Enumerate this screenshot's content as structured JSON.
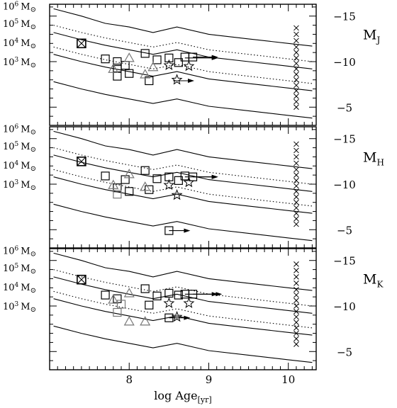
{
  "chart_data": {
    "type": "scatter",
    "xlabel": "log Age",
    "xlabel_sub": "[yr]",
    "xlim": [
      7.0,
      10.35
    ],
    "ylim": [
      -3.0,
      -16.3
    ],
    "x_ticks": [
      {
        "value": 8,
        "label": "8"
      },
      {
        "value": 9,
        "label": "9"
      },
      {
        "value": 10,
        "label": "10"
      }
    ],
    "right_ticks": [
      {
        "value": -15,
        "label": "−15"
      },
      {
        "value": -10,
        "label": "−10"
      },
      {
        "value": -5,
        "label": "−5"
      }
    ],
    "mass_labels": [
      {
        "mag": -16.1,
        "base": "10",
        "exp": "6",
        "unit": "M",
        "sym": "⊙"
      },
      {
        "mag": -14.2,
        "base": "10",
        "exp": "5",
        "unit": "M",
        "sym": "⊙"
      },
      {
        "mag": -12.1,
        "base": "10",
        "exp": "4",
        "unit": "M",
        "sym": "⊙"
      },
      {
        "mag": -10.0,
        "base": "10",
        "exp": "3",
        "unit": "M",
        "sym": "⊙"
      }
    ],
    "model_x": [
      7.05,
      7.4,
      7.7,
      8.0,
      8.3,
      8.6,
      9.0,
      9.5,
      10.0,
      10.3
    ],
    "panels": [
      {
        "label": "M",
        "label_sub": "J",
        "solid_tracks": [
          [
            -15.8,
            -15.0,
            -14.2,
            -13.8,
            -13.2,
            -13.8,
            -13.0,
            -12.5,
            -12.0,
            -11.7
          ],
          [
            -13.2,
            -12.4,
            -11.8,
            -11.3,
            -10.8,
            -11.3,
            -10.5,
            -10.0,
            -9.5,
            -9.2
          ],
          [
            -10.8,
            -10.0,
            -9.4,
            -8.9,
            -8.4,
            -8.9,
            -8.1,
            -7.6,
            -7.1,
            -6.8
          ],
          [
            -7.8,
            -7.0,
            -6.4,
            -5.9,
            -5.4,
            -5.9,
            -5.1,
            -4.6,
            -4.1,
            -3.8
          ]
        ],
        "dotted_tracks": [
          [
            -14.0,
            -13.2,
            -12.6,
            -12.1,
            -11.6,
            -12.1,
            -11.3,
            -10.8,
            -10.3,
            -10.0
          ],
          [
            -11.6,
            -10.8,
            -10.2,
            -9.7,
            -9.2,
            -9.7,
            -8.9,
            -8.4,
            -7.9,
            -7.6
          ]
        ],
        "crossed_squares": [
          {
            "x": 7.4,
            "y": -12.0
          }
        ],
        "squares": [
          {
            "x": 7.7,
            "y": -10.3
          },
          {
            "x": 7.85,
            "y": -9.3
          },
          {
            "x": 7.85,
            "y": -10.0
          },
          {
            "x": 7.85,
            "y": -8.4
          },
          {
            "x": 7.95,
            "y": -9.6
          },
          {
            "x": 8.0,
            "y": -8.7
          },
          {
            "x": 8.2,
            "y": -10.9
          },
          {
            "x": 8.25,
            "y": -7.9
          },
          {
            "x": 8.35,
            "y": -10.2
          },
          {
            "x": 8.5,
            "y": -10.4
          },
          {
            "x": 8.62,
            "y": -9.9
          },
          {
            "x": 8.7,
            "y": -10.5
          },
          {
            "x": 8.8,
            "y": -10.5
          }
        ],
        "gray_squares": [],
        "triangles": [
          {
            "x": 7.8,
            "y": -9.2
          },
          {
            "x": 8.0,
            "y": -10.4
          },
          {
            "x": 8.2,
            "y": -8.6
          },
          {
            "x": 8.3,
            "y": -9.4
          }
        ],
        "stars": [
          {
            "x": 8.5,
            "y": -9.6
          },
          {
            "x": 8.6,
            "y": -8.0
          },
          {
            "x": 8.75,
            "y": -9.5
          }
        ],
        "arrows": [
          {
            "x": 8.7,
            "y": -10.4,
            "len": 0.4
          },
          {
            "x": 8.8,
            "y": -10.5,
            "len": 0.3
          },
          {
            "x": 8.55,
            "y": -7.9,
            "len": 0.25
          }
        ],
        "x_markers": [
          {
            "x": 10.1,
            "y": -13.7
          },
          {
            "x": 10.1,
            "y": -13.0
          },
          {
            "x": 10.1,
            "y": -12.3
          },
          {
            "x": 10.1,
            "y": -11.6
          },
          {
            "x": 10.1,
            "y": -11.0
          },
          {
            "x": 10.1,
            "y": -10.4
          },
          {
            "x": 10.1,
            "y": -9.8
          },
          {
            "x": 10.1,
            "y": -9.2
          },
          {
            "x": 10.1,
            "y": -8.6
          },
          {
            "x": 10.1,
            "y": -8.0
          },
          {
            "x": 10.1,
            "y": -7.4
          },
          {
            "x": 10.1,
            "y": -6.8
          },
          {
            "x": 10.1,
            "y": -6.2
          },
          {
            "x": 10.1,
            "y": -5.6
          },
          {
            "x": 10.1,
            "y": -5.0
          }
        ]
      },
      {
        "label": "M",
        "label_sub": "H",
        "solid_tracks": [
          [
            -15.8,
            -15.0,
            -14.2,
            -13.8,
            -13.2,
            -13.8,
            -13.0,
            -12.5,
            -12.0,
            -11.7
          ],
          [
            -13.2,
            -12.4,
            -11.8,
            -11.3,
            -10.8,
            -11.3,
            -10.5,
            -10.0,
            -9.5,
            -9.2
          ],
          [
            -10.8,
            -10.0,
            -9.4,
            -8.9,
            -8.4,
            -8.9,
            -8.1,
            -7.6,
            -7.1,
            -6.8
          ],
          [
            -7.8,
            -7.0,
            -6.4,
            -5.9,
            -5.4,
            -5.9,
            -5.1,
            -4.6,
            -4.1,
            -3.8
          ]
        ],
        "dotted_tracks": [
          [
            -14.0,
            -13.2,
            -12.6,
            -12.1,
            -11.6,
            -12.1,
            -11.3,
            -10.8,
            -10.3,
            -10.0
          ],
          [
            -11.6,
            -10.8,
            -10.2,
            -9.7,
            -9.2,
            -9.7,
            -8.9,
            -8.4,
            -7.9,
            -7.6
          ]
        ],
        "crossed_squares": [
          {
            "x": 7.4,
            "y": -12.5
          }
        ],
        "squares": [
          {
            "x": 7.7,
            "y": -10.9
          },
          {
            "x": 7.85,
            "y": -9.6
          },
          {
            "x": 7.95,
            "y": -10.5
          },
          {
            "x": 8.0,
            "y": -9.2
          },
          {
            "x": 8.2,
            "y": -11.5
          },
          {
            "x": 8.25,
            "y": -9.4
          },
          {
            "x": 8.35,
            "y": -10.6
          },
          {
            "x": 8.5,
            "y": -10.8
          },
          {
            "x": 8.62,
            "y": -10.4
          },
          {
            "x": 8.7,
            "y": -10.9
          },
          {
            "x": 8.8,
            "y": -10.8
          },
          {
            "x": 8.5,
            "y": -4.9
          }
        ],
        "gray_squares": [
          {
            "x": 7.85,
            "y": -8.9
          }
        ],
        "triangles": [
          {
            "x": 7.8,
            "y": -9.9
          },
          {
            "x": 8.0,
            "y": -11.1
          },
          {
            "x": 8.2,
            "y": -9.7
          }
        ],
        "stars": [
          {
            "x": 8.5,
            "y": -9.9
          },
          {
            "x": 8.6,
            "y": -8.8
          },
          {
            "x": 8.75,
            "y": -10.2
          }
        ],
        "arrows": [
          {
            "x": 8.7,
            "y": -10.8,
            "len": 0.4
          },
          {
            "x": 8.8,
            "y": -10.8,
            "len": 0.3
          },
          {
            "x": 8.5,
            "y": -4.9,
            "len": 0.25
          }
        ],
        "x_markers": [
          {
            "x": 10.1,
            "y": -14.4
          },
          {
            "x": 10.1,
            "y": -13.7
          },
          {
            "x": 10.1,
            "y": -13.0
          },
          {
            "x": 10.1,
            "y": -12.3
          },
          {
            "x": 10.1,
            "y": -11.6
          },
          {
            "x": 10.1,
            "y": -11.0
          },
          {
            "x": 10.1,
            "y": -10.4
          },
          {
            "x": 10.1,
            "y": -9.8
          },
          {
            "x": 10.1,
            "y": -9.2
          },
          {
            "x": 10.1,
            "y": -8.6
          },
          {
            "x": 10.1,
            "y": -8.0
          },
          {
            "x": 10.1,
            "y": -7.4
          },
          {
            "x": 10.1,
            "y": -6.8
          },
          {
            "x": 10.1,
            "y": -6.2
          },
          {
            "x": 10.1,
            "y": -5.6
          }
        ]
      },
      {
        "label": "M",
        "label_sub": "K",
        "solid_tracks": [
          [
            -15.8,
            -15.0,
            -14.2,
            -13.8,
            -13.2,
            -13.8,
            -13.0,
            -12.5,
            -12.0,
            -11.7
          ],
          [
            -13.2,
            -12.4,
            -11.8,
            -11.3,
            -10.8,
            -11.3,
            -10.5,
            -10.0,
            -9.5,
            -9.2
          ],
          [
            -10.8,
            -10.0,
            -9.4,
            -8.9,
            -8.4,
            -8.9,
            -8.1,
            -7.6,
            -7.1,
            -6.8
          ],
          [
            -7.8,
            -7.0,
            -6.4,
            -5.9,
            -5.4,
            -5.9,
            -5.1,
            -4.6,
            -4.1,
            -3.8
          ]
        ],
        "dotted_tracks": [
          [
            -14.0,
            -13.2,
            -12.6,
            -12.1,
            -11.6,
            -12.1,
            -11.3,
            -10.8,
            -10.3,
            -10.0
          ],
          [
            -11.6,
            -10.8,
            -10.2,
            -9.7,
            -9.2,
            -9.7,
            -8.9,
            -8.4,
            -7.9,
            -7.6
          ]
        ],
        "crossed_squares": [
          {
            "x": 7.4,
            "y": -12.9
          }
        ],
        "squares": [
          {
            "x": 7.7,
            "y": -11.2
          },
          {
            "x": 7.85,
            "y": -10.8
          },
          {
            "x": 8.2,
            "y": -11.9
          },
          {
            "x": 8.25,
            "y": -10.1
          },
          {
            "x": 8.35,
            "y": -11.1
          },
          {
            "x": 8.5,
            "y": -11.4
          },
          {
            "x": 8.62,
            "y": -11.2
          },
          {
            "x": 8.7,
            "y": -11.3
          },
          {
            "x": 8.8,
            "y": -11.3
          },
          {
            "x": 8.5,
            "y": -8.7
          }
        ],
        "gray_squares": [
          {
            "x": 7.85,
            "y": -9.3
          },
          {
            "x": 7.9,
            "y": -10.2
          }
        ],
        "triangles": [
          {
            "x": 7.8,
            "y": -10.7
          },
          {
            "x": 8.0,
            "y": -11.4
          },
          {
            "x": 8.0,
            "y": -8.3
          },
          {
            "x": 8.2,
            "y": -8.3
          }
        ],
        "stars": [
          {
            "x": 8.5,
            "y": -10.3
          },
          {
            "x": 8.6,
            "y": -8.8
          },
          {
            "x": 8.75,
            "y": -10.3
          }
        ],
        "arrows": [
          {
            "x": 8.7,
            "y": -11.3,
            "len": 0.4
          },
          {
            "x": 8.8,
            "y": -11.3,
            "len": 0.35
          },
          {
            "x": 8.5,
            "y": -8.7,
            "len": 0.25
          }
        ],
        "x_markers": [
          {
            "x": 10.1,
            "y": -14.6
          },
          {
            "x": 10.1,
            "y": -13.9
          },
          {
            "x": 10.1,
            "y": -13.2
          },
          {
            "x": 10.1,
            "y": -12.5
          },
          {
            "x": 10.1,
            "y": -11.8
          },
          {
            "x": 10.1,
            "y": -11.2
          },
          {
            "x": 10.1,
            "y": -10.6
          },
          {
            "x": 10.1,
            "y": -10.0
          },
          {
            "x": 10.1,
            "y": -9.4
          },
          {
            "x": 10.1,
            "y": -8.8
          },
          {
            "x": 10.1,
            "y": -8.2
          },
          {
            "x": 10.1,
            "y": -7.6
          },
          {
            "x": 10.1,
            "y": -7.0
          },
          {
            "x": 10.1,
            "y": -6.4
          },
          {
            "x": 10.1,
            "y": -5.8
          }
        ]
      }
    ]
  }
}
